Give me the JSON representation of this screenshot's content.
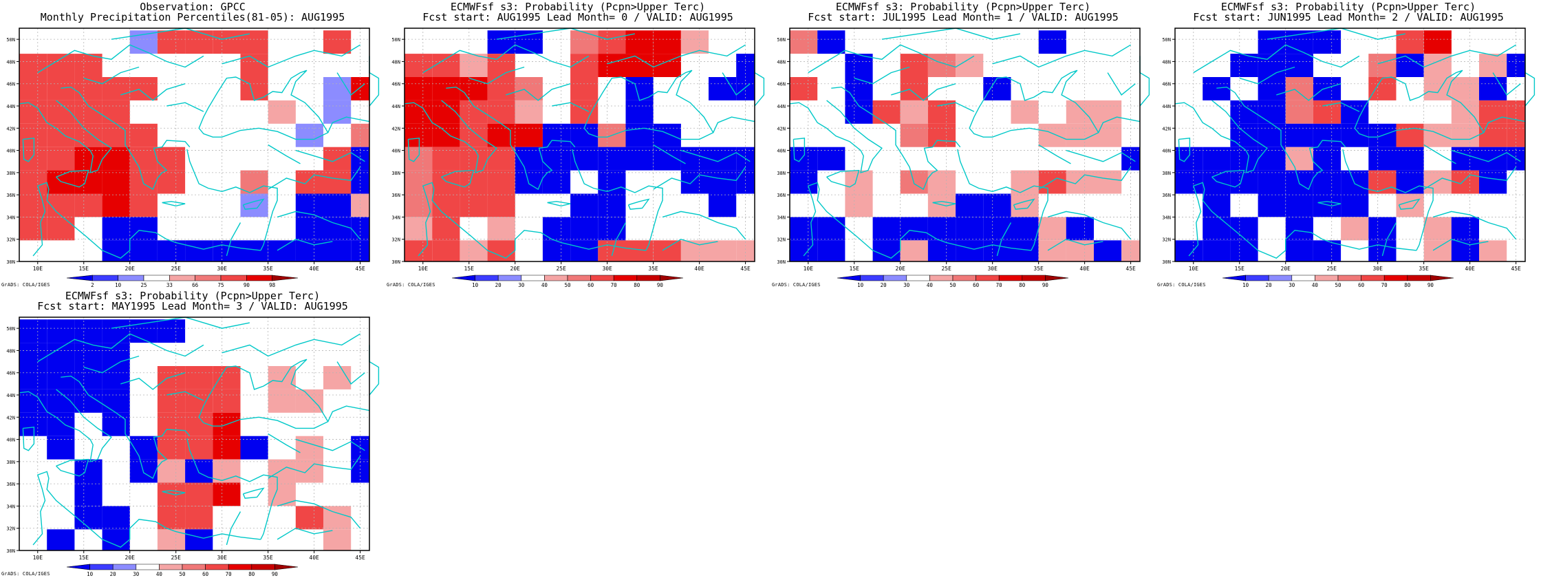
{
  "panels": [
    {
      "id": "obs",
      "title1": "Observation: GPCC",
      "title2": "Monthly Precipitation Percentiles(81-05): AUG1995",
      "colorbar_labels": [
        "2",
        "10",
        "25",
        "33",
        "66",
        "75",
        "90",
        "98"
      ],
      "colorbar_colors": [
        "#0000f0",
        "#3c3cff",
        "#8c8cff",
        "#ffffff",
        "#f5a5a5",
        "#f07878",
        "#f04646",
        "#e60000",
        "#a00000"
      ]
    },
    {
      "id": "lead0",
      "title1": "ECMWFsf s3: Probability (Pcpn>Upper Terc)",
      "title2": "Fcst start: AUG1995  Lead Month= 0 / VALID: AUG1995",
      "colorbar_labels": [
        "10",
        "20",
        "30",
        "40",
        "50",
        "60",
        "70",
        "80",
        "90"
      ],
      "colorbar_colors": [
        "#0000f0",
        "#3c3cff",
        "#8c8cff",
        "#ffffff",
        "#f5a5a5",
        "#f07878",
        "#f04646",
        "#e60000",
        "#c80000",
        "#a00000"
      ]
    },
    {
      "id": "lead1",
      "title1": "ECMWFsf s3: Probability (Pcpn>Upper Terc)",
      "title2": "Fcst start: JUL1995  Lead Month= 1 / VALID: AUG1995",
      "colorbar_labels": [
        "10",
        "20",
        "30",
        "40",
        "50",
        "60",
        "70",
        "80",
        "90"
      ],
      "colorbar_colors": [
        "#0000f0",
        "#3c3cff",
        "#8c8cff",
        "#ffffff",
        "#f5a5a5",
        "#f07878",
        "#f04646",
        "#e60000",
        "#c80000",
        "#a00000"
      ]
    },
    {
      "id": "lead2",
      "title1": "ECMWFsf s3: Probability (Pcpn>Upper Terc)",
      "title2": "Fcst start: JUN1995  Lead Month= 2 / VALID: AUG1995",
      "colorbar_labels": [
        "10",
        "20",
        "30",
        "40",
        "50",
        "60",
        "70",
        "80",
        "90"
      ],
      "colorbar_colors": [
        "#0000f0",
        "#3c3cff",
        "#8c8cff",
        "#ffffff",
        "#f5a5a5",
        "#f07878",
        "#f04646",
        "#e60000",
        "#c80000",
        "#a00000"
      ]
    },
    {
      "id": "lead3",
      "title1": "ECMWFsf s3: Probability (Pcpn>Upper Terc)",
      "title2": "Fcst start: MAY1995  Lead Month= 3 / VALID: AUG1995",
      "colorbar_labels": [
        "10",
        "20",
        "30",
        "40",
        "50",
        "60",
        "70",
        "80",
        "90"
      ],
      "colorbar_colors": [
        "#0000f0",
        "#3c3cff",
        "#8c8cff",
        "#ffffff",
        "#f5a5a5",
        "#f07878",
        "#f04646",
        "#e60000",
        "#c80000",
        "#a00000"
      ]
    }
  ],
  "credit": "GrADS: COLA/IGES",
  "map": {
    "lon_range": [
      8,
      46
    ],
    "lat_range": [
      30,
      51
    ],
    "lon_labels": [
      "10E",
      "15E",
      "20E",
      "25E",
      "30E",
      "35E",
      "40E",
      "45E"
    ],
    "lat_labels": [
      "30N",
      "32N",
      "34N",
      "36N",
      "38N",
      "40N",
      "42N",
      "44N",
      "46N",
      "48N",
      "50N"
    ],
    "coastline_color": "#00c8c8"
  },
  "color_key": {
    "B": "#0000f0",
    "M": "#3c3cff",
    "b": "#8c8cff",
    "p": "#f5a5a5",
    "r": "#f07878",
    "R": "#f04646",
    "D": "#e60000",
    "k": "#a00000"
  },
  "grids": {
    "obs": [
      "....bRRRR..R.",
      "RRR.....R....",
      "RRRRR...R..bD",
      "RRRR.....p.b.",
      "RRRRR.....b.r",
      "RRDDRR.....RB",
      "RDDDRR..r.RRB",
      "RRRDR...b.BBp",
      "RR.BB.....BBB",
      "...BBBBBBBBBB"
    ],
    "lead0": [
      "...BB.rRDDp..",
      "RRpR..RDDD..B",
      "DDDRr.R.B..BB",
      "DDRRp.R.B....",
      "DDRDDBBrBB...",
      "rRRRBBBBBBBBB",
      "rRRRBB.B..BBB",
      "rRRR..BB...B.",
      "pR.p.BBB.....",
      "RRpR.BBRRRppp"
    ],
    "lead1": [
      "rB.......B...",
      "..B.Rrp......",
      "R.B.R..B.....",
      "..BRpR..p.pp.",
      "....rR...ppp.",
      "BB..........B",
      "B.p.rp..pRpp.",
      "..p..pBBp....",
      "BB.BBBBBBpB..",
      "BB.BpBBBBppBp"
    ],
    "lead2": [
      "...BBB..RD...",
      "..BBB..rBp.pB",
      ".B.BrB.R.ppB.",
      "..BBrRB...pRR",
      "..BBBBBBRppRR",
      "BBBBpB.BB.BBB",
      "BBBBBBBRBpRB.",
      ".B.BBBB.p....",
      ".BB.B.pB.pB..",
      "BBB.BB.B.pBp."
    ],
    "lead3": [
      "BBBBBB.......",
      "BBBB.........",
      "BBBB.RRR.p.p.",
      "BBBB.RRR.pp..",
      "BB.B.RRD.....",
      ".B..BRRDB.p.B",
      "..B.BpBp.pp.B",
      "..B..RRD.p...",
      "..BB.RR...Rp.",
      ".B.B.pB....p."
    ]
  }
}
